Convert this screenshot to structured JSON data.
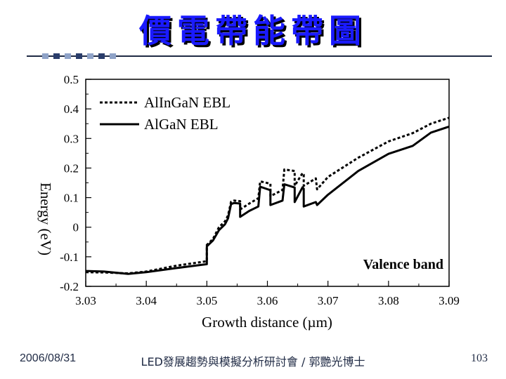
{
  "slide": {
    "title": "價電帶能帶圖",
    "footer_date": "2006/08/31",
    "footer_center": "LED發展趨勢與模擬分析研討會 / 郭艷光博士",
    "page_number": "103"
  },
  "chart_data": {
    "type": "line",
    "title": "",
    "xlabel": "Growth distance (µm)",
    "ylabel": "Energy (eV)",
    "xlim": [
      3.03,
      3.09
    ],
    "ylim": [
      -0.2,
      0.5
    ],
    "xticks": [
      "3.03",
      "3.04",
      "3.05",
      "3.06",
      "3.07",
      "3.08",
      "3.09"
    ],
    "yticks": [
      "-0.2",
      "-0.1",
      "0",
      "0.1",
      "0.2",
      "0.3",
      "0.4",
      "0.5"
    ],
    "grid": false,
    "legend": "top-left",
    "annotation": "Valence band",
    "series": [
      {
        "name": "AlInGaN EBL",
        "style": "dotted",
        "points": [
          [
            3.03,
            -0.152
          ],
          [
            3.033,
            -0.153
          ],
          [
            3.037,
            -0.156
          ],
          [
            3.04,
            -0.15
          ],
          [
            3.045,
            -0.13
          ],
          [
            3.05,
            -0.115
          ],
          [
            3.05,
            -0.06
          ],
          [
            3.051,
            -0.04
          ],
          [
            3.052,
            0.0
          ],
          [
            3.053,
            0.02
          ],
          [
            3.0535,
            0.04
          ],
          [
            3.054,
            0.086
          ],
          [
            3.0545,
            0.09
          ],
          [
            3.0555,
            0.088
          ],
          [
            3.0555,
            0.06
          ],
          [
            3.057,
            0.08
          ],
          [
            3.0585,
            0.098
          ],
          [
            3.0588,
            0.155
          ],
          [
            3.0605,
            0.147
          ],
          [
            3.0605,
            0.105
          ],
          [
            3.0625,
            0.126
          ],
          [
            3.0628,
            0.195
          ],
          [
            3.0645,
            0.19
          ],
          [
            3.0645,
            0.14
          ],
          [
            3.0658,
            0.183
          ],
          [
            3.066,
            0.178
          ],
          [
            3.066,
            0.14
          ],
          [
            3.068,
            0.165
          ],
          [
            3.0682,
            0.128
          ],
          [
            3.07,
            0.17
          ],
          [
            3.075,
            0.235
          ],
          [
            3.08,
            0.29
          ],
          [
            3.084,
            0.318
          ],
          [
            3.087,
            0.35
          ],
          [
            3.09,
            0.37
          ]
        ]
      },
      {
        "name": "AlGaN EBL",
        "style": "solid",
        "points": [
          [
            3.03,
            -0.148
          ],
          [
            3.033,
            -0.15
          ],
          [
            3.037,
            -0.158
          ],
          [
            3.04,
            -0.152
          ],
          [
            3.045,
            -0.138
          ],
          [
            3.05,
            -0.125
          ],
          [
            3.05,
            -0.065
          ],
          [
            3.051,
            -0.045
          ],
          [
            3.052,
            -0.01
          ],
          [
            3.053,
            0.01
          ],
          [
            3.0535,
            0.03
          ],
          [
            3.054,
            0.078
          ],
          [
            3.0545,
            0.082
          ],
          [
            3.0555,
            0.08
          ],
          [
            3.0555,
            0.035
          ],
          [
            3.057,
            0.055
          ],
          [
            3.0585,
            0.07
          ],
          [
            3.0588,
            0.137
          ],
          [
            3.0605,
            0.125
          ],
          [
            3.0605,
            0.075
          ],
          [
            3.0625,
            0.09
          ],
          [
            3.0628,
            0.145
          ],
          [
            3.0645,
            0.134
          ],
          [
            3.0645,
            0.085
          ],
          [
            3.0658,
            0.135
          ],
          [
            3.066,
            0.13
          ],
          [
            3.066,
            0.07
          ],
          [
            3.068,
            0.085
          ],
          [
            3.0682,
            0.075
          ],
          [
            3.07,
            0.11
          ],
          [
            3.075,
            0.19
          ],
          [
            3.08,
            0.248
          ],
          [
            3.084,
            0.275
          ],
          [
            3.087,
            0.32
          ],
          [
            3.09,
            0.34
          ]
        ]
      }
    ]
  }
}
